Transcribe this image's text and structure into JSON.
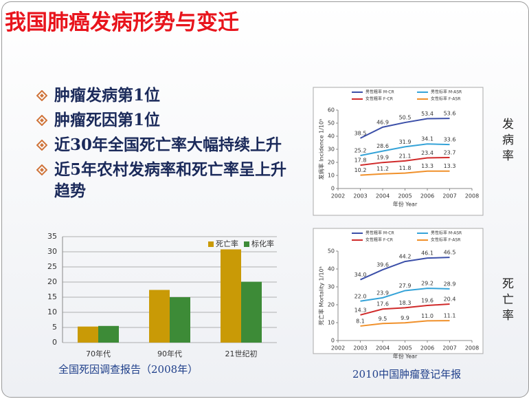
{
  "slide": {
    "title": "我国肺癌发病形势与变迁",
    "bullets": [
      "肿瘤发病第1位",
      "肿瘤死因第1位",
      "近30年全国死亡率大幅持续上升",
      "近5年农村发病率和死亡率呈上升趋势"
    ],
    "source_left": "全国死因调查报告（2008年）",
    "source_right": "2010中国肿瘤登记年报",
    "side_labels": [
      "发病率",
      "死亡率"
    ]
  },
  "chart_data": [
    {
      "type": "bar",
      "categories": [
        "70年代",
        "90年代",
        "21世纪初"
      ],
      "series": [
        {
          "name": "死亡率",
          "color": "#c99a06",
          "values": [
            5.3,
            17.4,
            30.8
          ]
        },
        {
          "name": "标化率",
          "color": "#3d8b37",
          "values": [
            5.5,
            15.0,
            20.1
          ]
        }
      ],
      "ylim": [
        0,
        35
      ],
      "yticks": [
        0,
        5,
        10,
        15,
        20,
        25,
        30,
        35
      ],
      "grid": true,
      "legend": "upper right"
    },
    {
      "type": "line",
      "x": [
        2003,
        2004,
        2005,
        2006,
        2007
      ],
      "series": [
        {
          "name": "男性粗率 M-CR",
          "color": "#3b4fa8",
          "values": [
            38.5,
            46.9,
            50.5,
            53.4,
            53.6
          ]
        },
        {
          "name": "男性标率 M-ASR",
          "color": "#35a3d8",
          "values": [
            25.2,
            28.6,
            31.9,
            34.1,
            33.6
          ]
        },
        {
          "name": "女性粗率 F-CR",
          "color": "#d02a2a",
          "values": [
            17.8,
            19.9,
            21.1,
            23.4,
            23.7
          ]
        },
        {
          "name": "女性标率 F-ASR",
          "color": "#f0902a",
          "values": [
            10.2,
            11.2,
            11.8,
            13.3,
            13.3
          ]
        }
      ],
      "xlim": [
        2002,
        2008
      ],
      "xticks": [
        2002,
        2003,
        2004,
        2005,
        2006,
        2007,
        2008
      ],
      "ylim": [
        0,
        60
      ],
      "yticks": [
        0,
        10,
        20,
        30,
        40,
        50,
        60
      ],
      "xlabel": "年份  Year",
      "ylabel": "发病率  Incidence 1/10⁵",
      "grid": false,
      "legend": "upper center"
    },
    {
      "type": "line",
      "x": [
        2003,
        2004,
        2005,
        2006,
        2007
      ],
      "series": [
        {
          "name": "男性粗率 M-CR",
          "color": "#3b4fa8",
          "values": [
            34.0,
            39.6,
            44.2,
            46.1,
            46.5
          ],
          "value_labels": [
            "34.0",
            "39.6",
            "44.2",
            "46.1",
            "46.5"
          ]
        },
        {
          "name": "男性标率 M-ASR",
          "color": "#35a3d8",
          "values": [
            22.0,
            23.9,
            27.9,
            29.2,
            28.9
          ],
          "value_labels": [
            "22.0",
            "23.9",
            "27.9",
            "29.2",
            "28.9"
          ]
        },
        {
          "name": "女性粗率 F-CR",
          "color": "#d02a2a",
          "values": [
            14.3,
            17.6,
            18.3,
            19.6,
            20.4
          ],
          "value_labels": [
            "14.3",
            "17.6",
            "18.3",
            "19.6",
            "20.4"
          ]
        },
        {
          "name": "女性标率 F-ASR",
          "color": "#f0902a",
          "values": [
            8.1,
            9.5,
            9.9,
            11.0,
            11.1
          ],
          "value_labels": [
            "8.1",
            "9.5",
            "9.9",
            "11.0",
            "11.1"
          ]
        }
      ],
      "xlim": [
        2002,
        2008
      ],
      "xticks": [
        2002,
        2003,
        2004,
        2005,
        2006,
        2007,
        2008
      ],
      "ylim": [
        0,
        50
      ],
      "yticks": [
        0,
        10,
        20,
        30,
        40,
        50
      ],
      "xlabel": "年份  Year",
      "ylabel": "死亡率  Mortality 1/10⁵",
      "grid": false,
      "legend": "upper center"
    }
  ]
}
